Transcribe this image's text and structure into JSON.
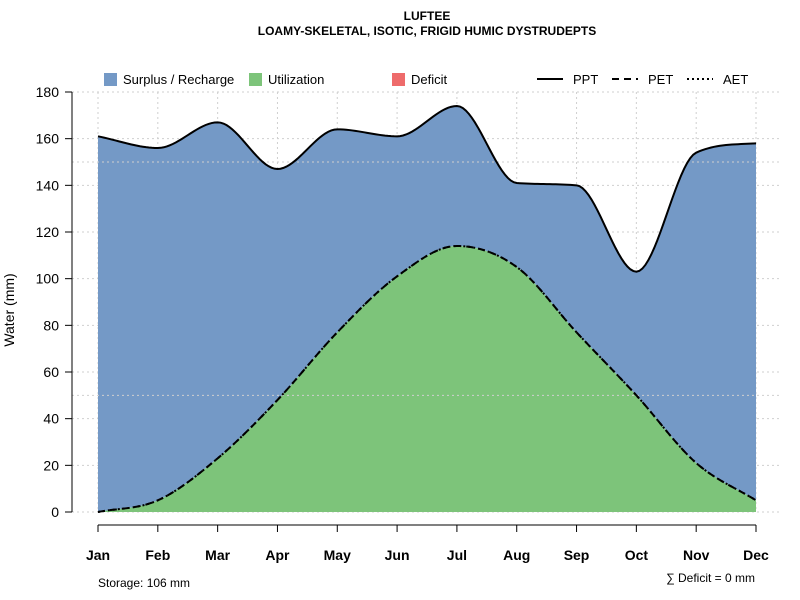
{
  "chart_data": {
    "type": "area",
    "title": "LUFTEE",
    "subtitle": "LOAMY-SKELETAL, ISOTIC, FRIGID HUMIC DYSTRUDEPTS",
    "xlabel": "",
    "ylabel": "Water (mm)",
    "ylim": [
      0,
      180
    ],
    "yticks": [
      0,
      20,
      40,
      60,
      80,
      100,
      120,
      140,
      160,
      180
    ],
    "categories": [
      "Jan",
      "Feb",
      "Mar",
      "Apr",
      "May",
      "Jun",
      "Jul",
      "Aug",
      "Sep",
      "Oct",
      "Nov",
      "Dec"
    ],
    "grid": true,
    "series": [
      {
        "name": "PPT",
        "line_style": "solid",
        "values": [
          161,
          156,
          167,
          147,
          164,
          161,
          174,
          141,
          140,
          103,
          154,
          158
        ]
      },
      {
        "name": "PET",
        "line_style": "dashed",
        "values": [
          0,
          5,
          23,
          48,
          77,
          101,
          114,
          105,
          77,
          50,
          21,
          5
        ]
      },
      {
        "name": "AET",
        "line_style": "dotted",
        "values": [
          0,
          5,
          23,
          48,
          77,
          101,
          114,
          105,
          77,
          50,
          21,
          5
        ]
      }
    ],
    "areas": [
      {
        "name": "Surplus / Recharge",
        "color": "#7499c6",
        "between": [
          "PET",
          "PPT"
        ]
      },
      {
        "name": "Utilization",
        "color": "#7dc47a",
        "between": [
          "0",
          "PET"
        ]
      },
      {
        "name": "Deficit",
        "color": "#ee6b6b",
        "between": [
          "AET",
          "PET"
        ]
      }
    ],
    "legend": {
      "placement": "top",
      "fills": [
        "Surplus / Recharge",
        "Utilization",
        "Deficit"
      ],
      "lines": [
        "PPT",
        "PET",
        "AET"
      ]
    },
    "annotations": {
      "storage": "Storage: 106 mm",
      "deficit": "∑ Deficit = 0 mm"
    },
    "hlines": [
      150,
      50
    ]
  },
  "colors": {
    "surplus": "#7499c6",
    "utilization": "#7dc47a",
    "deficit": "#ee6b6b",
    "grid": "#cfcfcf",
    "axis": "#000000"
  }
}
